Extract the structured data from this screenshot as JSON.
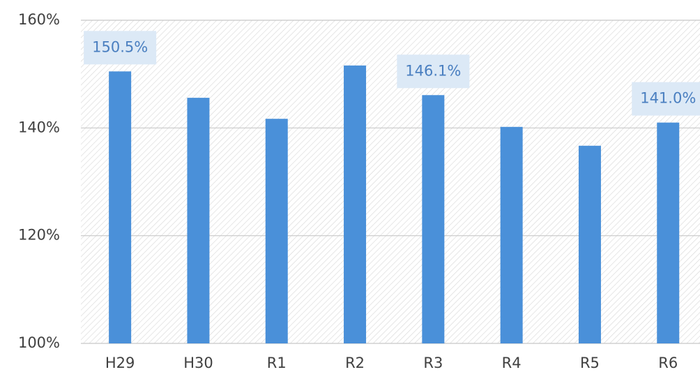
{
  "chart_data": {
    "type": "bar",
    "categories": [
      "H29",
      "H30",
      "R1",
      "R2",
      "R3",
      "R4",
      "R5",
      "R6"
    ],
    "values": [
      150.5,
      145.6,
      141.7,
      151.6,
      146.1,
      140.2,
      136.7,
      141.0
    ],
    "value_labels": [
      "150.5%",
      null,
      null,
      null,
      "146.1%",
      null,
      null,
      "141.0%"
    ],
    "color": "#4a90d9",
    "ylim": [
      100,
      160
    ],
    "yticks": [
      {
        "value": 100,
        "label": "100%"
      },
      {
        "value": 120,
        "label": "120%"
      },
      {
        "value": 140,
        "label": "140%"
      },
      {
        "value": 160,
        "label": "160%"
      }
    ],
    "grid": true
  }
}
